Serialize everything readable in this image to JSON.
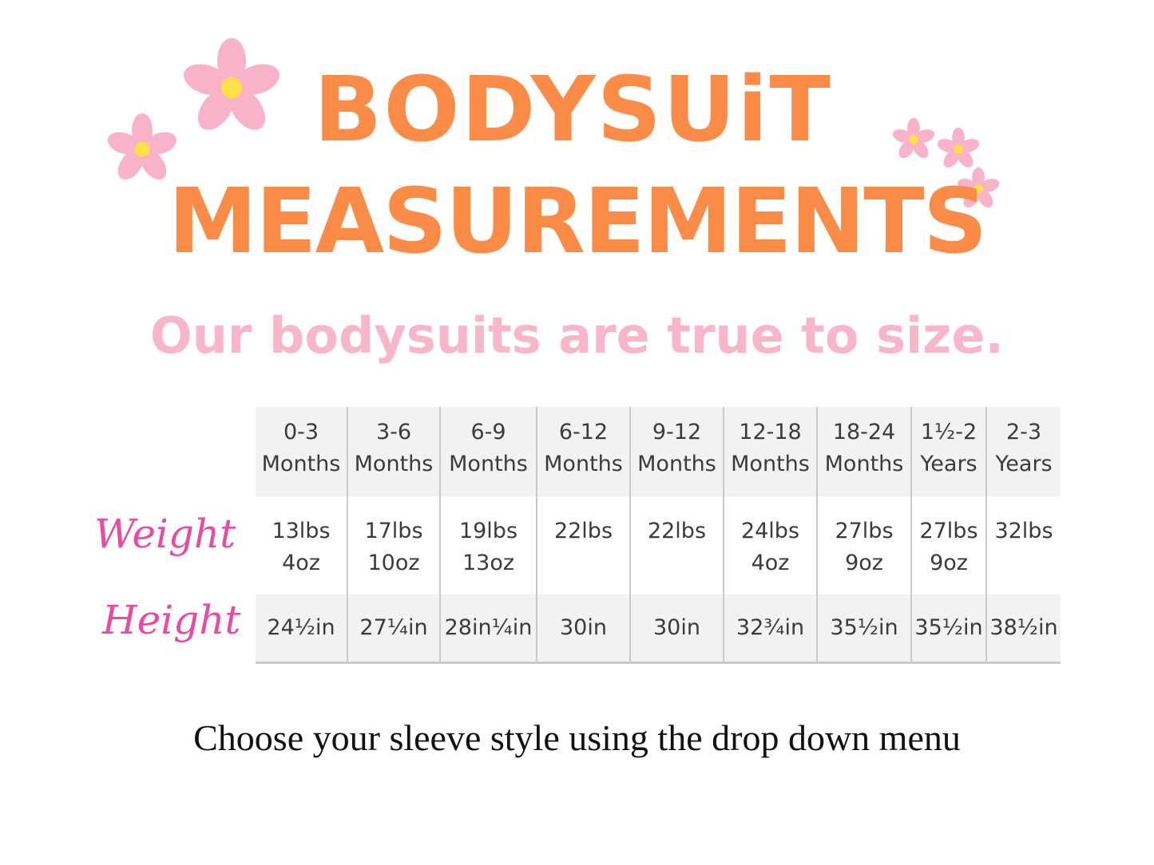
{
  "title_line1": "BODYSUiT",
  "title_line2": "MEASUREMENTS",
  "subtitle": "Our bodysuits are true to size.",
  "colors": {
    "title": "#fb8c48",
    "subtitle": "#f8b6c9",
    "labels": "#ea4aa0",
    "flower": "#f9b3c8",
    "flower_center": "#fde047"
  },
  "row_labels": {
    "weight": "Weight",
    "height": "Height"
  },
  "size_table": {
    "sizes": [
      {
        "range": "0-3",
        "unit": "Months",
        "weight": [
          "13lbs",
          "4oz"
        ],
        "height": "24½in"
      },
      {
        "range": "3-6",
        "unit": "Months",
        "weight": [
          "17lbs",
          "10oz"
        ],
        "height": "27¼in"
      },
      {
        "range": "6-9",
        "unit": "Months",
        "weight": [
          "19lbs",
          "13oz"
        ],
        "height": "28in¼in"
      },
      {
        "range": "6-12",
        "unit": "Months",
        "weight": [
          "22lbs",
          ""
        ],
        "height": "30in"
      },
      {
        "range": "9-12",
        "unit": "Months",
        "weight": [
          "22lbs",
          ""
        ],
        "height": "30in"
      },
      {
        "range": "12-18",
        "unit": "Months",
        "weight": [
          "24lbs",
          "4oz"
        ],
        "height": "32¾in"
      },
      {
        "range": "18-24",
        "unit": "Months",
        "weight": [
          "27lbs",
          "9oz"
        ],
        "height": "35½in"
      },
      {
        "range": "1½-2",
        "unit": "Years",
        "weight": [
          "27lbs",
          "9oz"
        ],
        "height": "35½in"
      },
      {
        "range": "2-3",
        "unit": "Years",
        "weight": [
          "32lbs",
          ""
        ],
        "height": "38½in"
      }
    ]
  },
  "footer": "Choose your sleeve style using the drop down menu"
}
